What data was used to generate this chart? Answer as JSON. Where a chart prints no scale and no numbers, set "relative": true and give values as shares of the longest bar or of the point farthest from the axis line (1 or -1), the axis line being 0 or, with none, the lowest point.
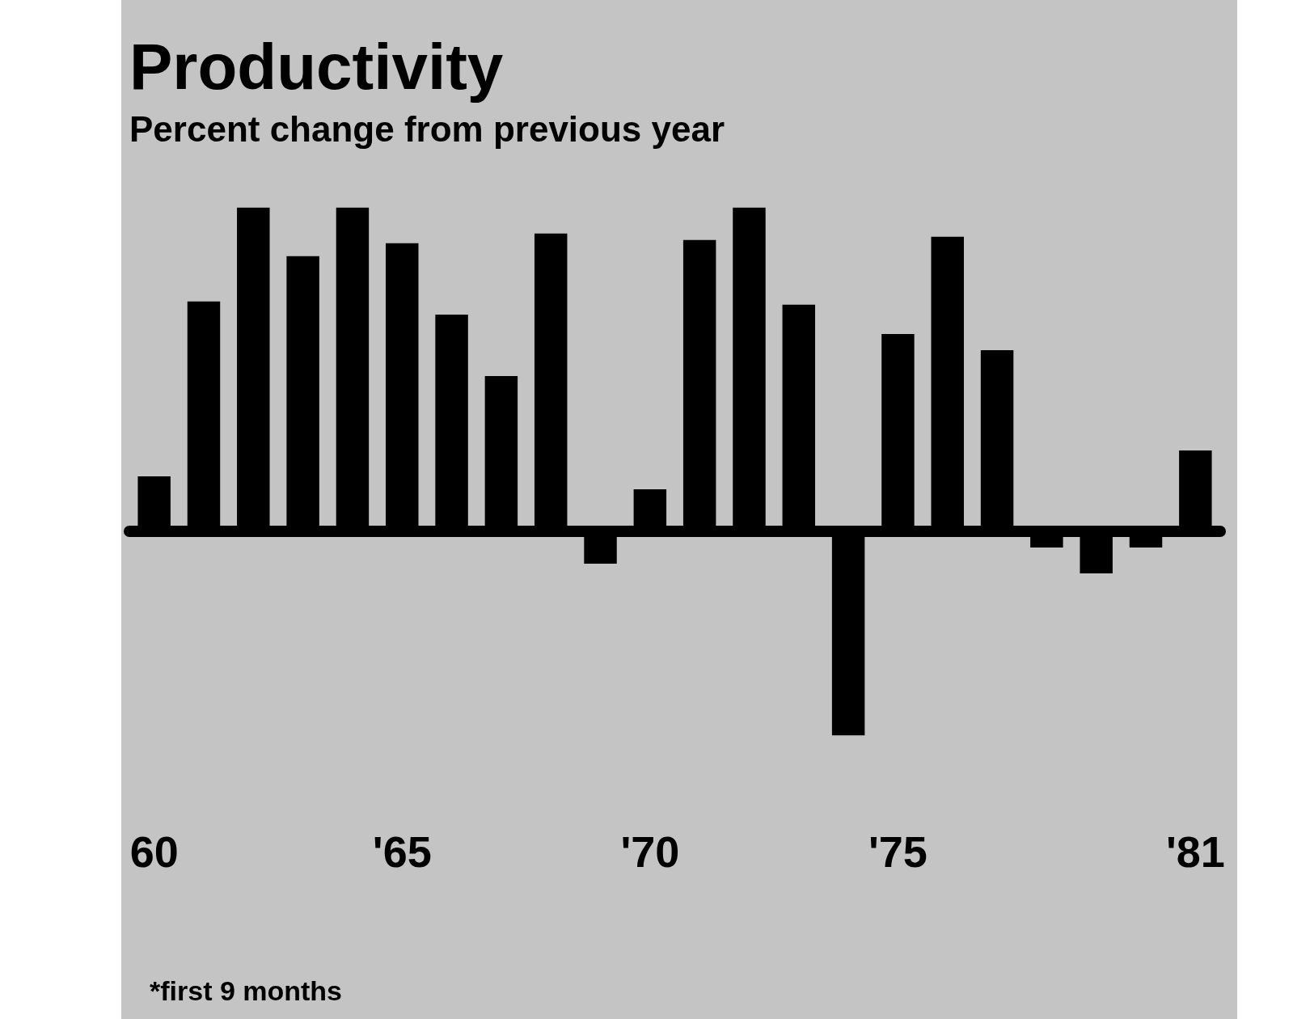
{
  "chart_data": {
    "type": "bar",
    "title": "Productivity",
    "subtitle": "Percent change from previous year",
    "categories": [
      "60",
      null,
      null,
      null,
      null,
      "'65",
      null,
      null,
      null,
      null,
      "'70",
      null,
      null,
      null,
      null,
      "'75",
      null,
      null,
      null,
      null,
      null,
      "'81"
    ],
    "values": [
      0.17,
      0.71,
      1,
      0.85,
      1,
      0.89,
      0.67,
      0.48,
      0.92,
      -0.1,
      0.13,
      0.9,
      1,
      0.7,
      -0.63,
      0.61,
      0.91,
      0.56,
      -0.05,
      -0.13,
      -0.05,
      0.25
    ],
    "color": "#000000",
    "relative": true,
    "grid": false,
    "legend": false,
    "annotations": [
      "*first 9 months"
    ]
  }
}
